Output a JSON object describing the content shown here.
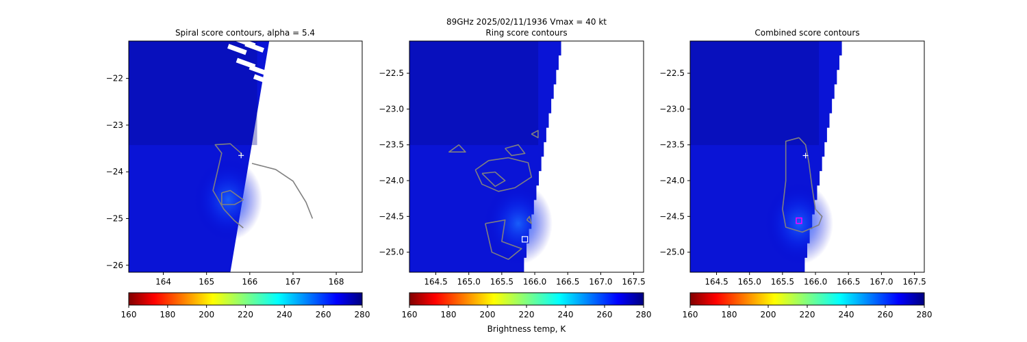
{
  "suptitle": "89GHz  2025/02/11/1936    Vmax = 40 kt",
  "colorbar_label": "Brightness temp, K",
  "colors": {
    "colormap": "jet_r",
    "contour": "#808080",
    "center_marker": "#ffffff",
    "combined_max_marker": "#ff00ff"
  },
  "chart_data": [
    {
      "type": "heatmap",
      "title": "Spiral score contours, alpha =  5.4",
      "xlim": [
        163.2,
        168.6
      ],
      "ylim": [
        -26.15,
        -21.2
      ],
      "xticks": [
        164,
        165,
        166,
        167,
        168
      ],
      "yticks": [
        -22,
        -23,
        -24,
        -25,
        -26
      ],
      "swath_edge": [
        [
          166.45,
          -21.2
        ],
        [
          165.55,
          -26.15
        ]
      ],
      "center_marker": [
        165.8,
        -23.65
      ],
      "contours": [
        [
          [
            165.82,
            -23.62
          ],
          [
            165.55,
            -23.4
          ],
          [
            165.2,
            -23.42
          ],
          [
            165.35,
            -23.6
          ],
          [
            165.25,
            -24.0
          ],
          [
            165.15,
            -24.4
          ],
          [
            165.4,
            -24.8
          ],
          [
            165.65,
            -25.05
          ],
          [
            165.85,
            -25.2
          ]
        ],
        [
          [
            165.35,
            -24.45
          ],
          [
            165.55,
            -24.4
          ],
          [
            165.85,
            -24.6
          ],
          [
            165.65,
            -24.7
          ],
          [
            165.35,
            -24.7
          ],
          [
            165.35,
            -24.45
          ]
        ],
        [
          [
            166.05,
            -23.82
          ],
          [
            166.6,
            -23.95
          ],
          [
            167.0,
            -24.2
          ],
          [
            167.3,
            -24.65
          ],
          [
            167.45,
            -25.0
          ]
        ]
      ],
      "colorbar": {
        "vmin": 160,
        "vmax": 280,
        "ticks": [
          160,
          180,
          200,
          220,
          240,
          260,
          280
        ]
      }
    },
    {
      "type": "heatmap",
      "title": "Ring score contours",
      "xlim": [
        164.1,
        167.65
      ],
      "ylim": [
        -25.28,
        -22.05
      ],
      "xticks": [
        164.5,
        165.0,
        165.5,
        166.0,
        166.5,
        167.0,
        167.5
      ],
      "yticks": [
        -22.5,
        -23.0,
        -23.5,
        -24.0,
        -24.5,
        -25.0
      ],
      "swath_edge": [
        [
          166.4,
          -22.05
        ],
        [
          165.8,
          -25.28
        ]
      ],
      "center_marker": [
        165.85,
        -24.82
      ],
      "contours": [
        [
          [
            165.1,
            -23.85
          ],
          [
            165.3,
            -23.72
          ],
          [
            165.6,
            -23.68
          ],
          [
            165.9,
            -23.75
          ],
          [
            165.95,
            -23.95
          ],
          [
            165.7,
            -24.1
          ],
          [
            165.45,
            -24.15
          ],
          [
            165.2,
            -24.05
          ],
          [
            165.1,
            -23.85
          ]
        ],
        [
          [
            165.2,
            -23.9
          ],
          [
            165.4,
            -23.88
          ],
          [
            165.55,
            -24.0
          ],
          [
            165.4,
            -24.08
          ],
          [
            165.2,
            -23.9
          ]
        ],
        [
          [
            164.85,
            -23.5
          ],
          [
            164.7,
            -23.6
          ],
          [
            164.95,
            -23.6
          ],
          [
            164.85,
            -23.5
          ]
        ],
        [
          [
            165.55,
            -23.55
          ],
          [
            165.75,
            -23.5
          ],
          [
            165.85,
            -23.62
          ],
          [
            165.65,
            -23.65
          ],
          [
            165.55,
            -23.55
          ]
        ],
        [
          [
            165.95,
            -23.35
          ],
          [
            166.05,
            -23.3
          ],
          [
            166.05,
            -23.4
          ],
          [
            165.95,
            -23.35
          ]
        ],
        [
          [
            165.25,
            -24.6
          ],
          [
            165.55,
            -24.55
          ],
          [
            165.5,
            -24.85
          ],
          [
            165.8,
            -24.95
          ],
          [
            165.6,
            -25.1
          ],
          [
            165.35,
            -25.0
          ],
          [
            165.3,
            -24.8
          ],
          [
            165.25,
            -24.6
          ]
        ],
        [
          [
            165.88,
            -24.55
          ],
          [
            165.92,
            -24.5
          ],
          [
            165.95,
            -24.6
          ],
          [
            165.88,
            -24.55
          ]
        ]
      ],
      "colorbar": {
        "vmin": 160,
        "vmax": 280,
        "ticks": [
          160,
          180,
          200,
          220,
          240,
          260,
          280
        ]
      }
    },
    {
      "type": "heatmap",
      "title": "Combined score contours",
      "xlim": [
        164.1,
        167.65
      ],
      "ylim": [
        -25.28,
        -22.05
      ],
      "xticks": [
        164.5,
        165.0,
        165.5,
        166.0,
        166.5,
        167.0,
        167.5
      ],
      "yticks": [
        -22.5,
        -23.0,
        -23.5,
        -24.0,
        -24.5,
        -25.0
      ],
      "swath_edge": [
        [
          166.4,
          -22.05
        ],
        [
          165.8,
          -25.28
        ]
      ],
      "center_marker": [
        165.85,
        -23.65
      ],
      "max_marker": [
        165.75,
        -24.56
      ],
      "contours": [
        [
          [
            165.75,
            -23.4
          ],
          [
            165.55,
            -23.45
          ],
          [
            165.55,
            -23.7
          ],
          [
            165.55,
            -24.0
          ],
          [
            165.5,
            -24.4
          ],
          [
            165.55,
            -24.65
          ],
          [
            165.8,
            -24.72
          ],
          [
            166.05,
            -24.62
          ],
          [
            166.1,
            -24.5
          ],
          [
            166.0,
            -24.4
          ],
          [
            165.95,
            -24.1
          ],
          [
            165.9,
            -23.75
          ],
          [
            165.85,
            -23.5
          ],
          [
            165.75,
            -23.4
          ]
        ]
      ],
      "colorbar": {
        "vmin": 160,
        "vmax": 280,
        "ticks": [
          160,
          180,
          200,
          220,
          240,
          260,
          280
        ]
      }
    }
  ]
}
